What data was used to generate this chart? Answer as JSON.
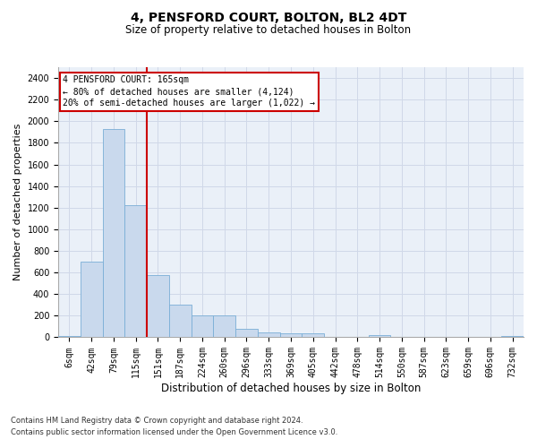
{
  "title": "4, PENSFORD COURT, BOLTON, BL2 4DT",
  "subtitle": "Size of property relative to detached houses in Bolton",
  "xlabel": "Distribution of detached houses by size in Bolton",
  "ylabel": "Number of detached properties",
  "footer1": "Contains HM Land Registry data © Crown copyright and database right 2024.",
  "footer2": "Contains public sector information licensed under the Open Government Licence v3.0.",
  "bin_labels": [
    "6sqm",
    "42sqm",
    "79sqm",
    "115sqm",
    "151sqm",
    "187sqm",
    "224sqm",
    "260sqm",
    "296sqm",
    "333sqm",
    "369sqm",
    "405sqm",
    "442sqm",
    "478sqm",
    "514sqm",
    "550sqm",
    "587sqm",
    "623sqm",
    "659sqm",
    "696sqm",
    "732sqm"
  ],
  "bar_values": [
    15,
    700,
    1930,
    1220,
    580,
    305,
    200,
    200,
    80,
    45,
    35,
    35,
    0,
    0,
    20,
    0,
    0,
    0,
    0,
    0,
    15
  ],
  "bar_color": "#c9d9ed",
  "bar_edge_color": "#7aaed6",
  "vline_color": "#cc0000",
  "ylim": [
    0,
    2500
  ],
  "yticks": [
    0,
    200,
    400,
    600,
    800,
    1000,
    1200,
    1400,
    1600,
    1800,
    2000,
    2200,
    2400
  ],
  "annotation_title": "4 PENSFORD COURT: 165sqm",
  "annotation_line1": "← 80% of detached houses are smaller (4,124)",
  "annotation_line2": "20% of semi-detached houses are larger (1,022) →",
  "annotation_box_color": "#cc0000",
  "grid_color": "#d0d8e8",
  "bg_color": "#eaf0f8",
  "title_fontsize": 10,
  "subtitle_fontsize": 8.5,
  "ylabel_fontsize": 8,
  "xlabel_fontsize": 8.5,
  "tick_fontsize": 7,
  "annotation_fontsize": 7,
  "footer_fontsize": 6
}
